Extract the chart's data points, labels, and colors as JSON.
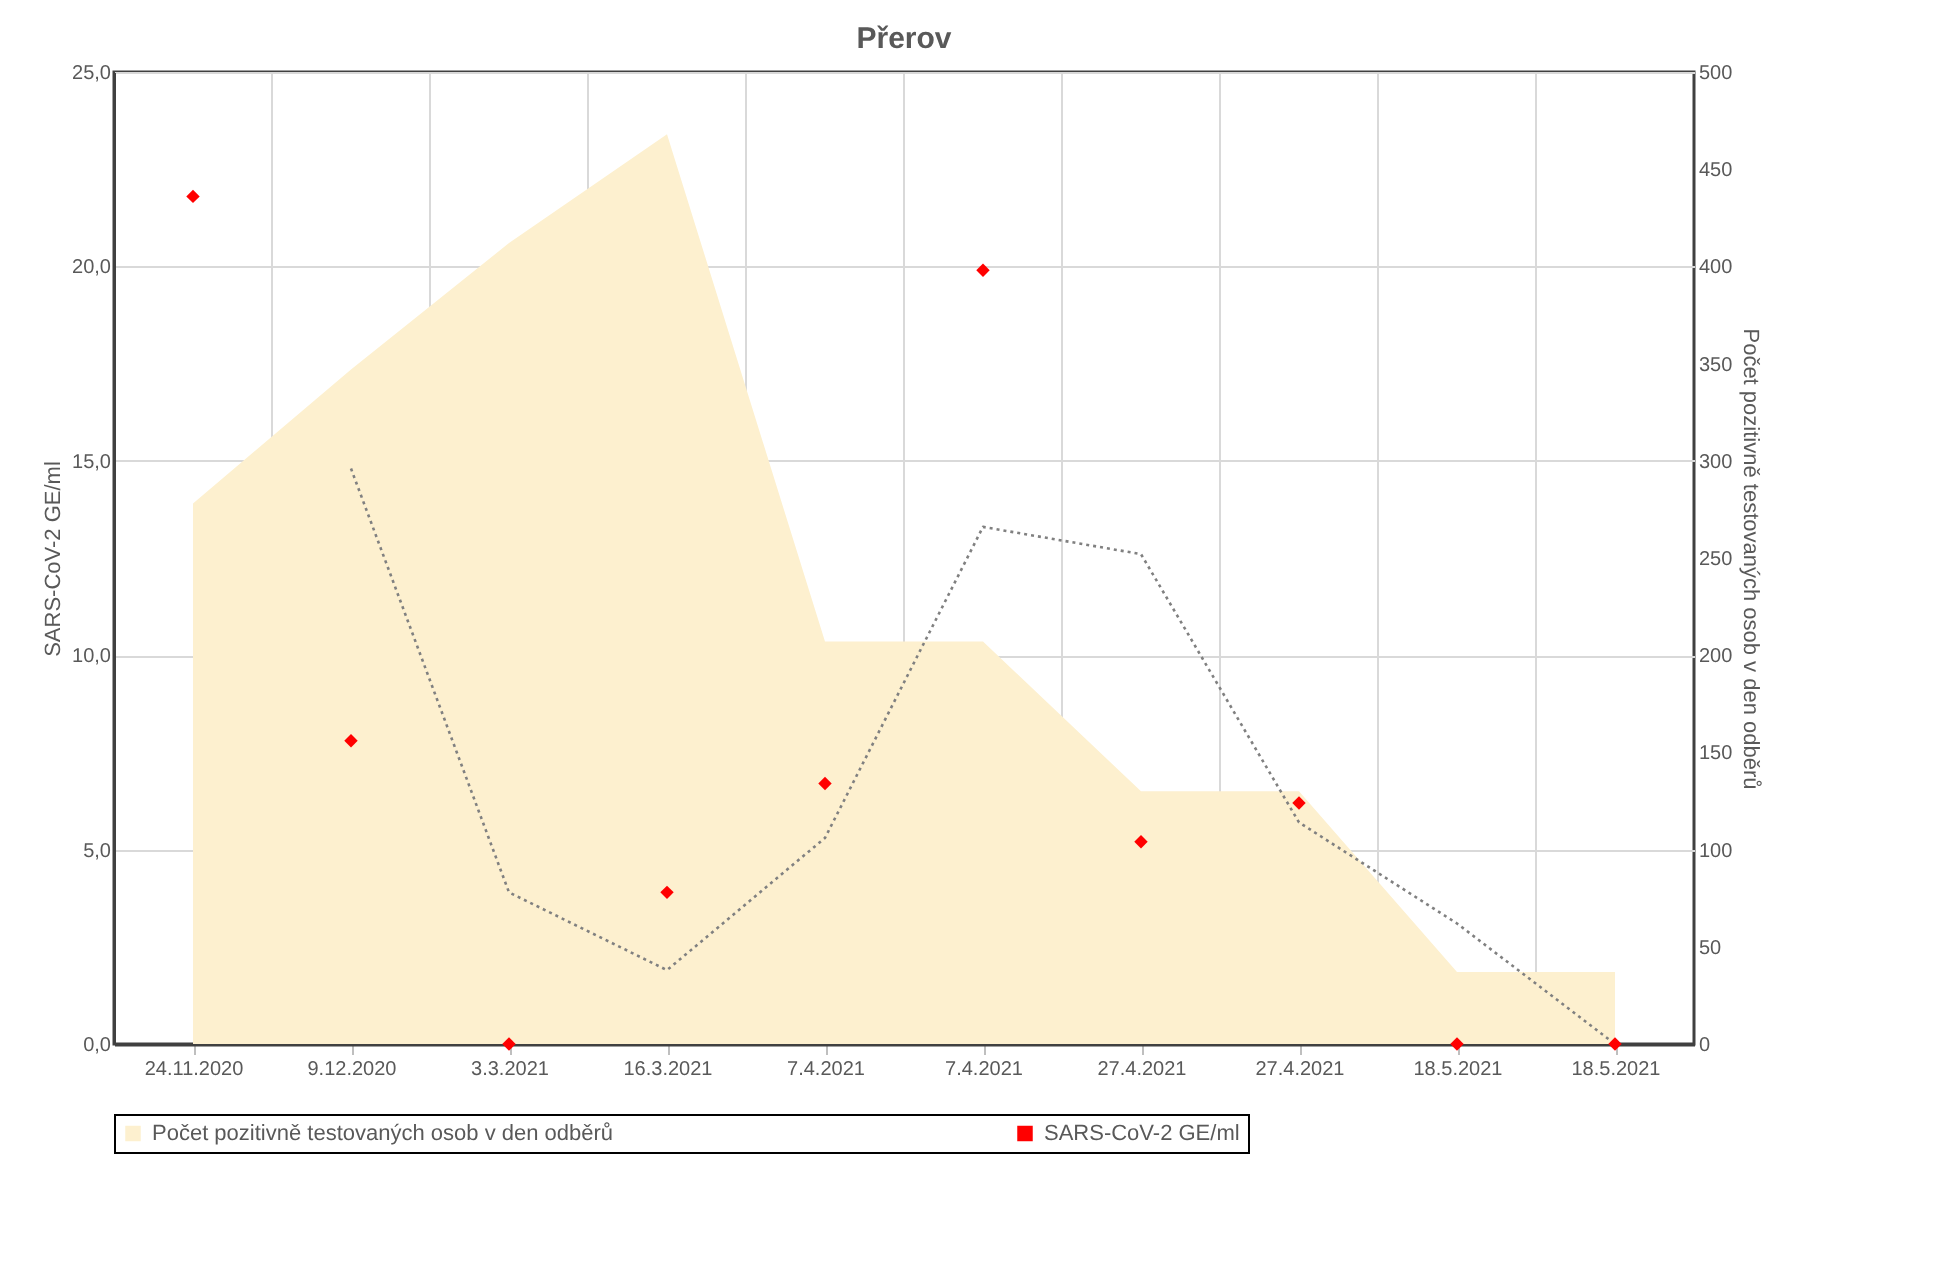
{
  "chart_data": {
    "type": "scatter",
    "title": "Přerov",
    "ylabel": "SARS-CoV-2 GE/ml",
    "y2label": "Počet pozitivně testovaných osob v den odběrů",
    "categories": [
      "24.11.2020",
      "9.12.2020",
      "3.3.2021",
      "16.3.2021",
      "7.4.2021",
      "7.4.2021",
      "27.4.2021",
      "27.4.2021",
      "18.5.2021",
      "18.5.2021"
    ],
    "series": [
      {
        "name": "Počet pozitivně testovaných osob v den odběrů",
        "type": "area",
        "axis": "y2",
        "color": "#fdf0cf",
        "values": [
          278,
          347,
          412,
          468,
          207,
          207,
          130,
          130,
          37,
          37
        ]
      },
      {
        "type": "line",
        "color": "#808080",
        "line_style": "dotted",
        "marker": "none",
        "values": [
          null,
          14.8,
          3.9,
          1.9,
          5.3,
          13.3,
          12.6,
          5.7,
          3.1,
          0
        ]
      },
      {
        "name": "SARS-CoV-2 GE/ml",
        "type": "scatter",
        "marker": "diamond",
        "color": "#ff0000",
        "values": [
          21.8,
          7.8,
          0,
          3.9,
          6.7,
          19.9,
          5.2,
          6.2,
          0,
          0
        ]
      }
    ],
    "ylim": [
      0,
      25
    ],
    "yticks": [
      {
        "value": 0,
        "label": "0,0"
      },
      {
        "value": 5,
        "label": "5,0"
      },
      {
        "value": 10,
        "label": "10,0"
      },
      {
        "value": 15,
        "label": "15,0"
      },
      {
        "value": 20,
        "label": "20,0"
      },
      {
        "value": 25,
        "label": "25,0"
      }
    ],
    "y2lim": [
      0,
      500
    ],
    "y2ticks": [
      0,
      50,
      100,
      150,
      200,
      250,
      300,
      350,
      400,
      450,
      500
    ],
    "grid": true,
    "legend": "bottom"
  }
}
